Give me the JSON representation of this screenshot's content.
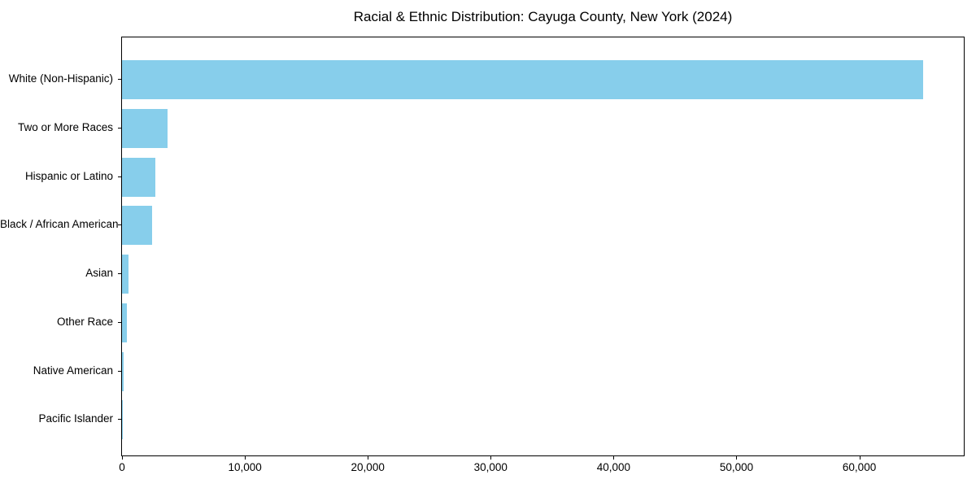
{
  "chart_data": {
    "type": "bar",
    "orientation": "horizontal",
    "title": "Racial & Ethnic Distribution: Cayuga County, New York (2024)",
    "categories": [
      "White (Non-Hispanic)",
      "Two or More Races",
      "Hispanic or Latino",
      "Black / African American",
      "Asian",
      "Other Race",
      "Native American",
      "Pacific Islander"
    ],
    "values": [
      65200,
      3700,
      2700,
      2450,
      510,
      380,
      130,
      20
    ],
    "xlabel": "",
    "ylabel": "",
    "xlim": [
      0,
      68500
    ],
    "xticks": [
      0,
      10000,
      20000,
      30000,
      40000,
      50000,
      60000
    ],
    "xtick_labels": [
      "0",
      "10,000",
      "20,000",
      "30,000",
      "40,000",
      "50,000",
      "60,000"
    ],
    "grid": false,
    "legend": null,
    "bar_color": "#87CEEB",
    "frame_color": "#000000",
    "background_color": "#ffffff"
  }
}
